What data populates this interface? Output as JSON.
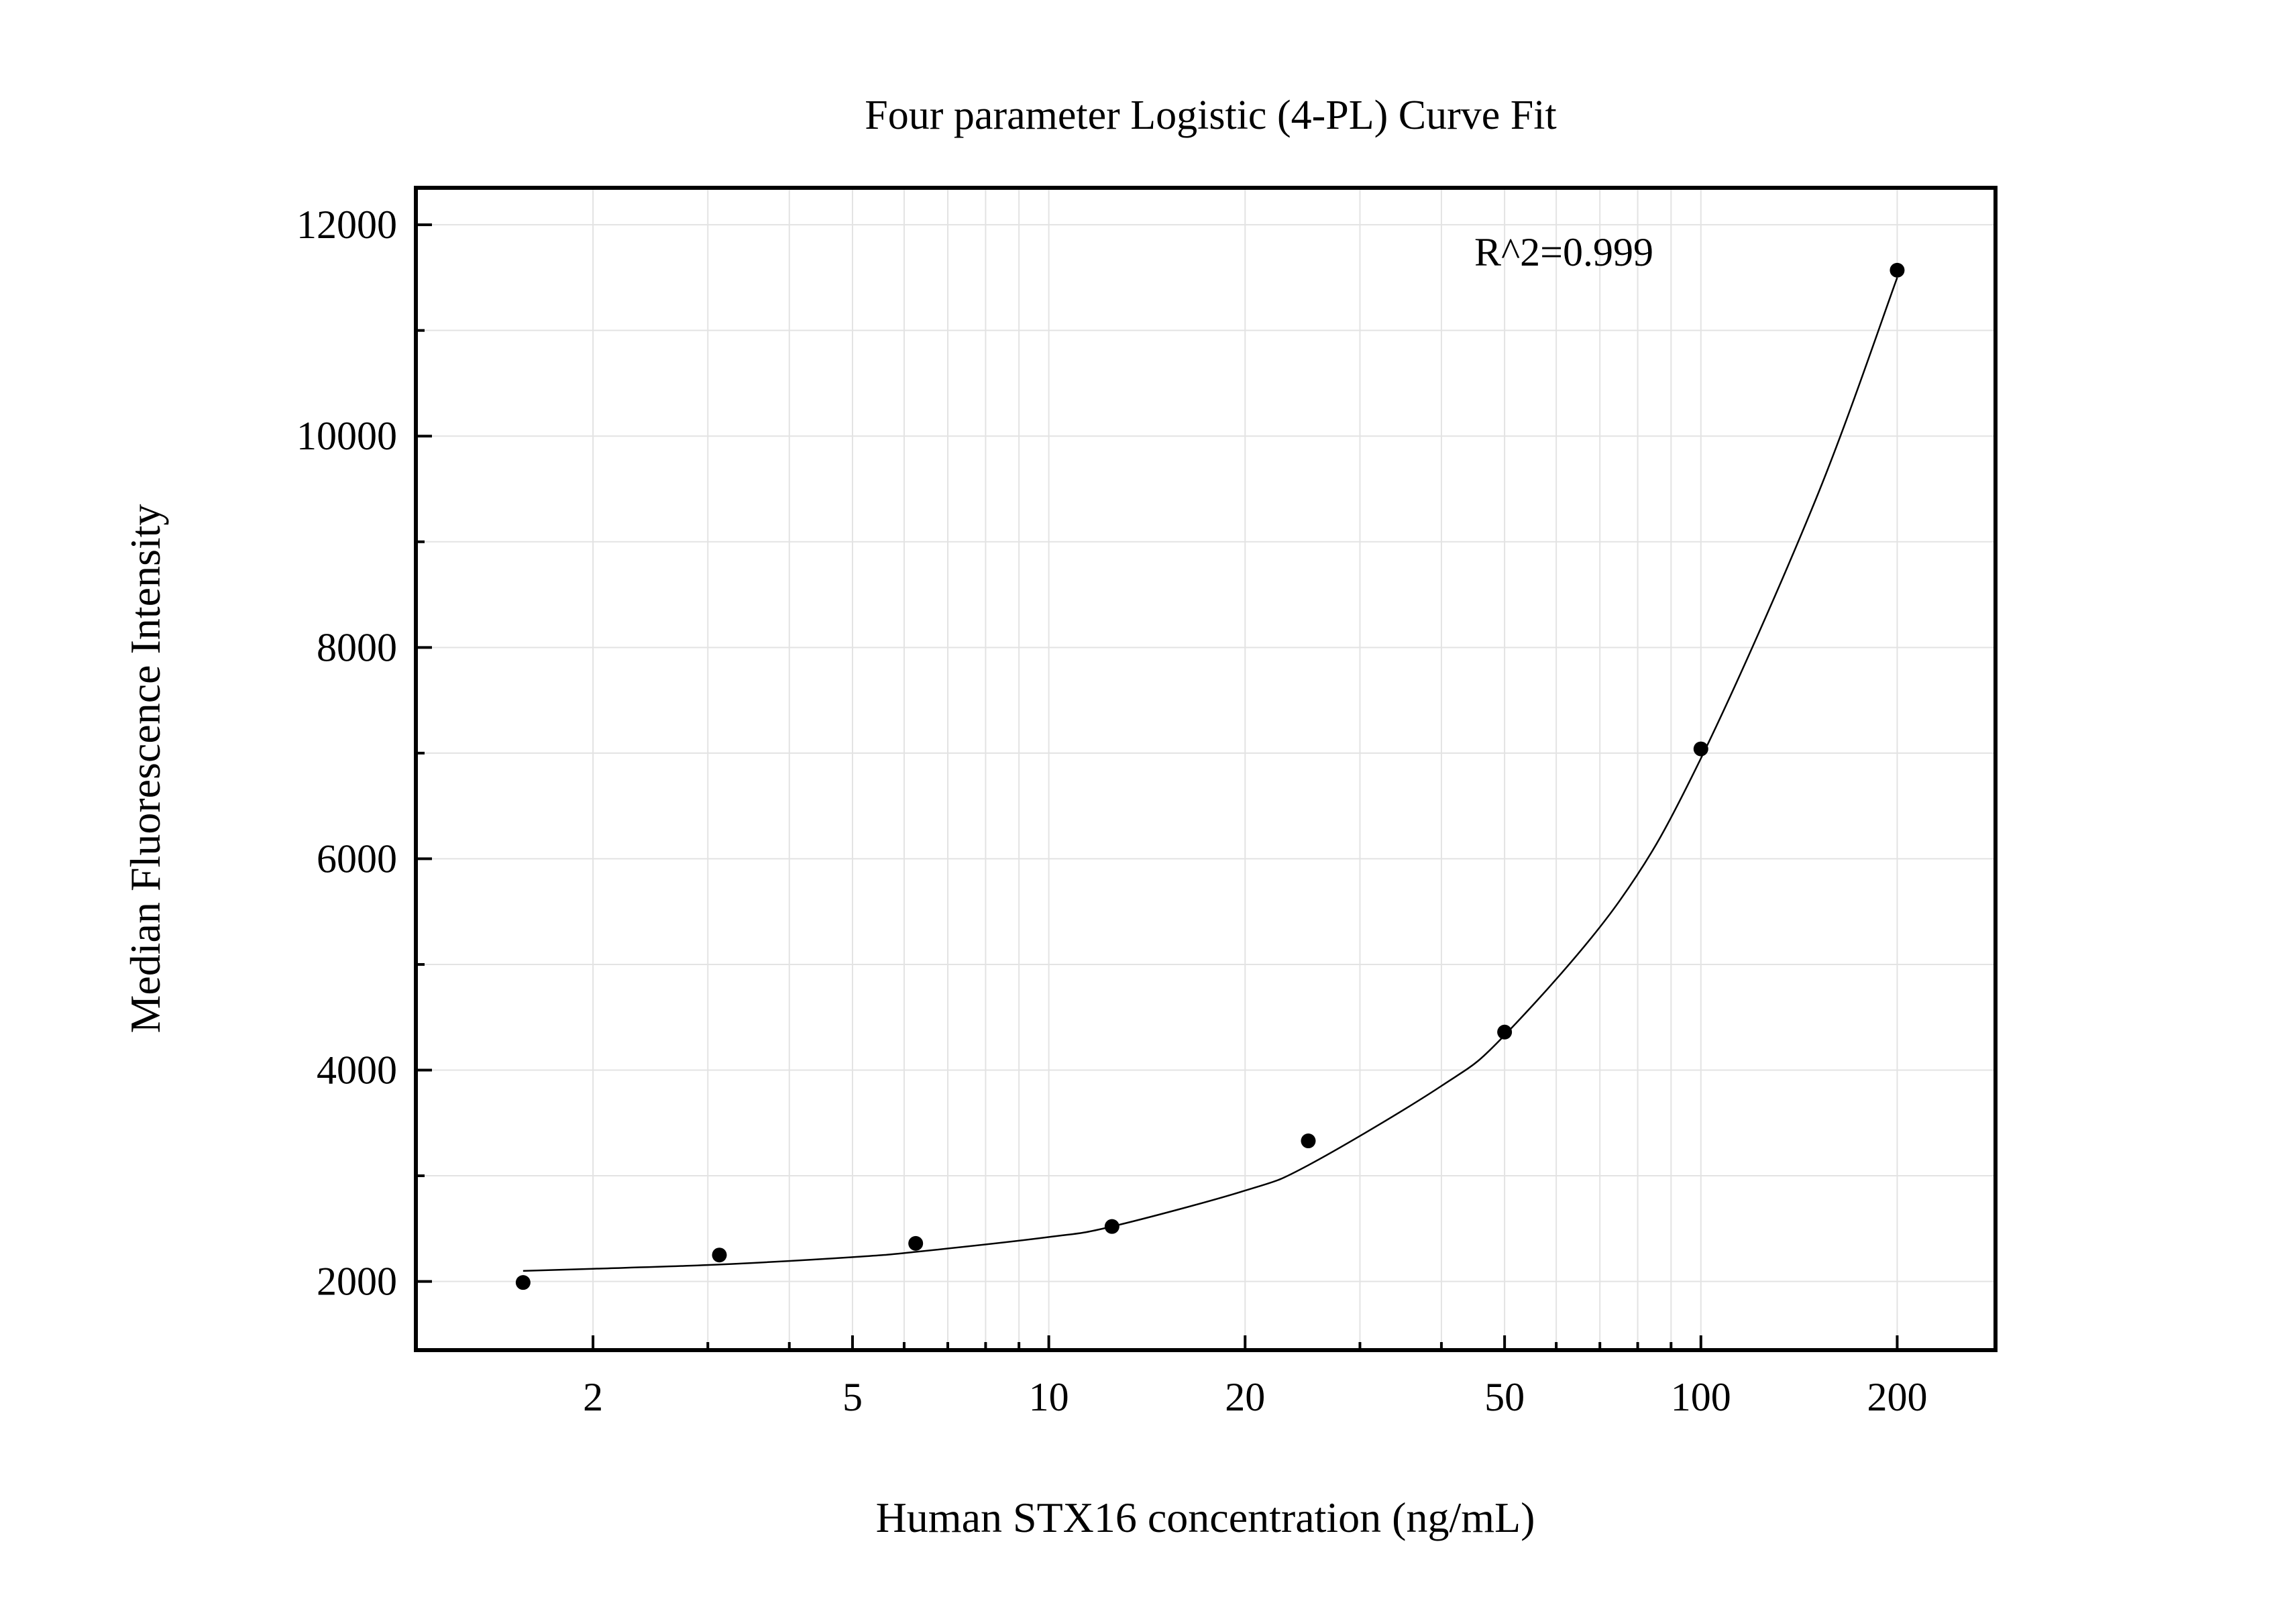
{
  "chart_data": {
    "type": "scatter",
    "title": "Four parameter Logistic (4-PL) Curve Fit",
    "xlabel": "Human STX16 concentration (ng/mL)",
    "ylabel": "Median Fluorescence Intensity",
    "x_scale": "log",
    "xlim": [
      1.07,
      283
    ],
    "ylim": [
      1350,
      12350
    ],
    "x_ticks": [
      2,
      5,
      10,
      20,
      50,
      100,
      200
    ],
    "x_tick_labels": [
      "2",
      "5",
      "10",
      "20",
      "50",
      "100",
      "200"
    ],
    "y_ticks": [
      2000,
      4000,
      6000,
      8000,
      10000,
      12000
    ],
    "y_tick_labels": [
      "2000",
      "4000",
      "6000",
      "8000",
      "10000",
      "12000"
    ],
    "grid": true,
    "annotation": "R^2=0.999",
    "series": [
      {
        "kind": "points",
        "x": [
          1.5625,
          3.125,
          6.25,
          12.5,
          25,
          50,
          100,
          200
        ],
        "y": [
          1990,
          2250,
          2360,
          2520,
          3330,
          4360,
          7040,
          11570
        ]
      },
      {
        "kind": "fit-curve",
        "x": [
          1.5625,
          2,
          3.125,
          5,
          6.25,
          10,
          12.5,
          20,
          25,
          40,
          50,
          75,
          100,
          150,
          200
        ],
        "y": [
          2100,
          2120,
          2160,
          2230,
          2280,
          2420,
          2520,
          2860,
          3100,
          3850,
          4330,
          5600,
          6950,
          9400,
          11500
        ]
      }
    ],
    "colors": {
      "points": "#000000",
      "curve": "#000000",
      "grid": "#e3e3e3",
      "frame": "#000000"
    }
  }
}
